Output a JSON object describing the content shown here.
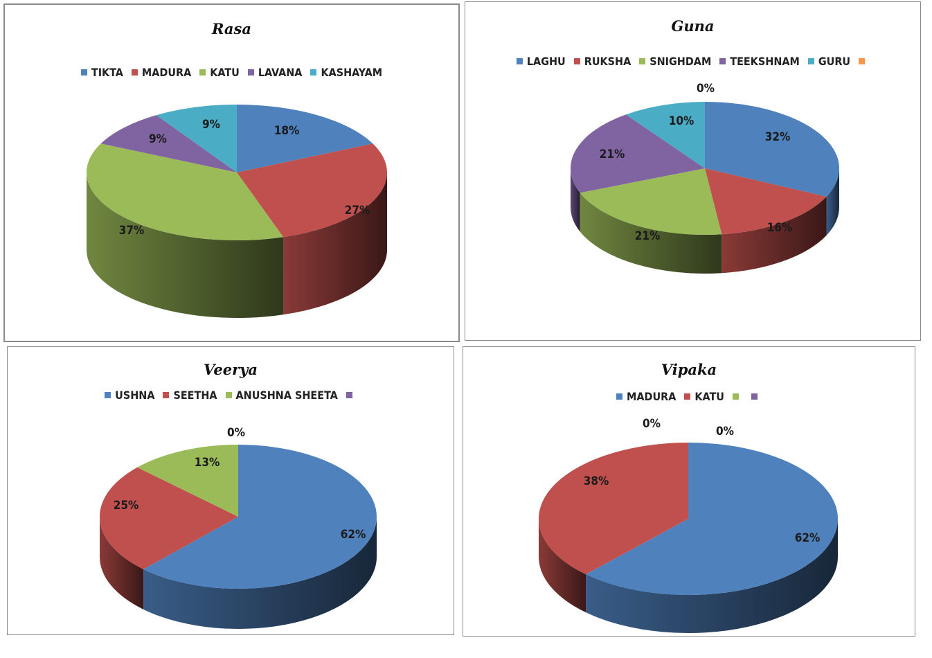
{
  "chart_data": [
    {
      "type": "pie",
      "title": "Rasa",
      "categories": [
        "TIKTA",
        "MADURA",
        "KATU",
        "LAVANA",
        "KASHAYAM"
      ],
      "values": [
        18,
        27,
        37,
        9,
        9
      ],
      "value_labels": [
        "18%",
        "27%",
        "37%",
        "9%",
        "9%"
      ],
      "colors": [
        "#4F81BD",
        "#C0504D",
        "#9BBB59",
        "#8064A2",
        "#4BACC6"
      ],
      "legend": "top",
      "style": "3d"
    },
    {
      "type": "pie",
      "title": "Guna",
      "categories": [
        "LAGHU",
        "RUKSHA",
        "SNIGHDAM",
        "TEEKSHNAM",
        "GURU",
        ""
      ],
      "values": [
        32,
        16,
        21,
        21,
        10,
        0
      ],
      "value_labels": [
        "32%",
        "16%",
        "21%",
        "21%",
        "10%",
        "0%"
      ],
      "colors": [
        "#4F81BD",
        "#C0504D",
        "#9BBB59",
        "#8064A2",
        "#4BACC6",
        "#F79646"
      ],
      "legend": "top",
      "style": "3d"
    },
    {
      "type": "pie",
      "title": "Veerya",
      "categories": [
        "USHNA",
        "SEETHA",
        "ANUSHNA SHEETA",
        ""
      ],
      "values": [
        62,
        25,
        13,
        0
      ],
      "value_labels": [
        "62%",
        "25%",
        "13%",
        "0%"
      ],
      "colors": [
        "#4F81BD",
        "#C0504D",
        "#9BBB59",
        "#8064A2"
      ],
      "legend": "top",
      "style": "3d"
    },
    {
      "type": "pie",
      "title": "Vipaka",
      "categories": [
        "MADURA",
        "KATU",
        "",
        ""
      ],
      "values": [
        62,
        38,
        0,
        0
      ],
      "value_labels": [
        "62%",
        "38%",
        "0%",
        "0%"
      ],
      "colors": [
        "#4F81BD",
        "#C0504D",
        "#9BBB59",
        "#8064A2"
      ],
      "legend": "top",
      "style": "3d"
    }
  ]
}
